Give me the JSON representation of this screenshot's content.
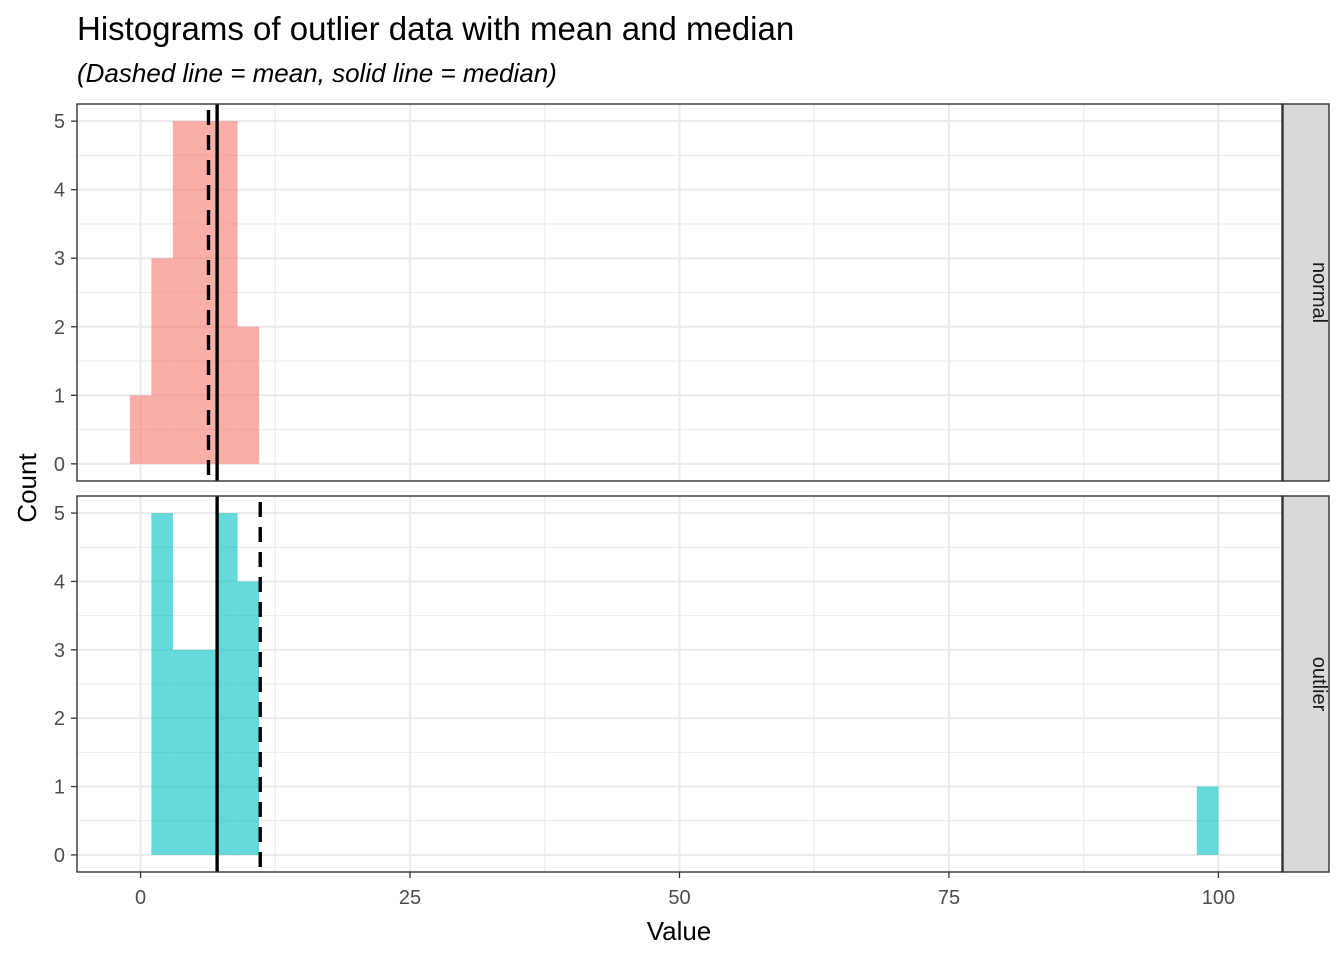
{
  "chart_data": {
    "type": "bar",
    "title": "Histograms of outlier data with mean and median",
    "subtitle": "(Dashed line = mean, solid line = median)",
    "xlabel": "Value",
    "ylabel": "Count",
    "xlim": [
      -5.9,
      105.9
    ],
    "ylim": [
      -0.25,
      5.25
    ],
    "x_ticks": [
      0,
      25,
      50,
      75,
      100
    ],
    "y_ticks": [
      0,
      1,
      2,
      3,
      4,
      5
    ],
    "grid": true,
    "bin_width": 2,
    "colors": {
      "normal": "#F8766D",
      "outlier": "#00BFC4",
      "lines": "#000000",
      "strip": "#D9D9D9"
    },
    "panels": [
      {
        "name": "normal",
        "bins": [
          {
            "x0": -1,
            "x1": 1,
            "count": 1
          },
          {
            "x0": 1,
            "x1": 3,
            "count": 3
          },
          {
            "x0": 3,
            "x1": 5,
            "count": 5
          },
          {
            "x0": 5,
            "x1": 7,
            "count": 5
          },
          {
            "x0": 7,
            "x1": 9,
            "count": 5
          },
          {
            "x0": 9,
            "x1": 11,
            "count": 2
          }
        ],
        "mean": 6.3,
        "median": 7.1
      },
      {
        "name": "outlier",
        "bins": [
          {
            "x0": 1,
            "x1": 3,
            "count": 5
          },
          {
            "x0": 3,
            "x1": 5,
            "count": 3
          },
          {
            "x0": 5,
            "x1": 7,
            "count": 3
          },
          {
            "x0": 7,
            "x1": 9,
            "count": 5
          },
          {
            "x0": 9,
            "x1": 11,
            "count": 4
          },
          {
            "x0": 98,
            "x1": 100,
            "count": 1
          }
        ],
        "mean": 11.1,
        "median": 7.1
      }
    ]
  }
}
